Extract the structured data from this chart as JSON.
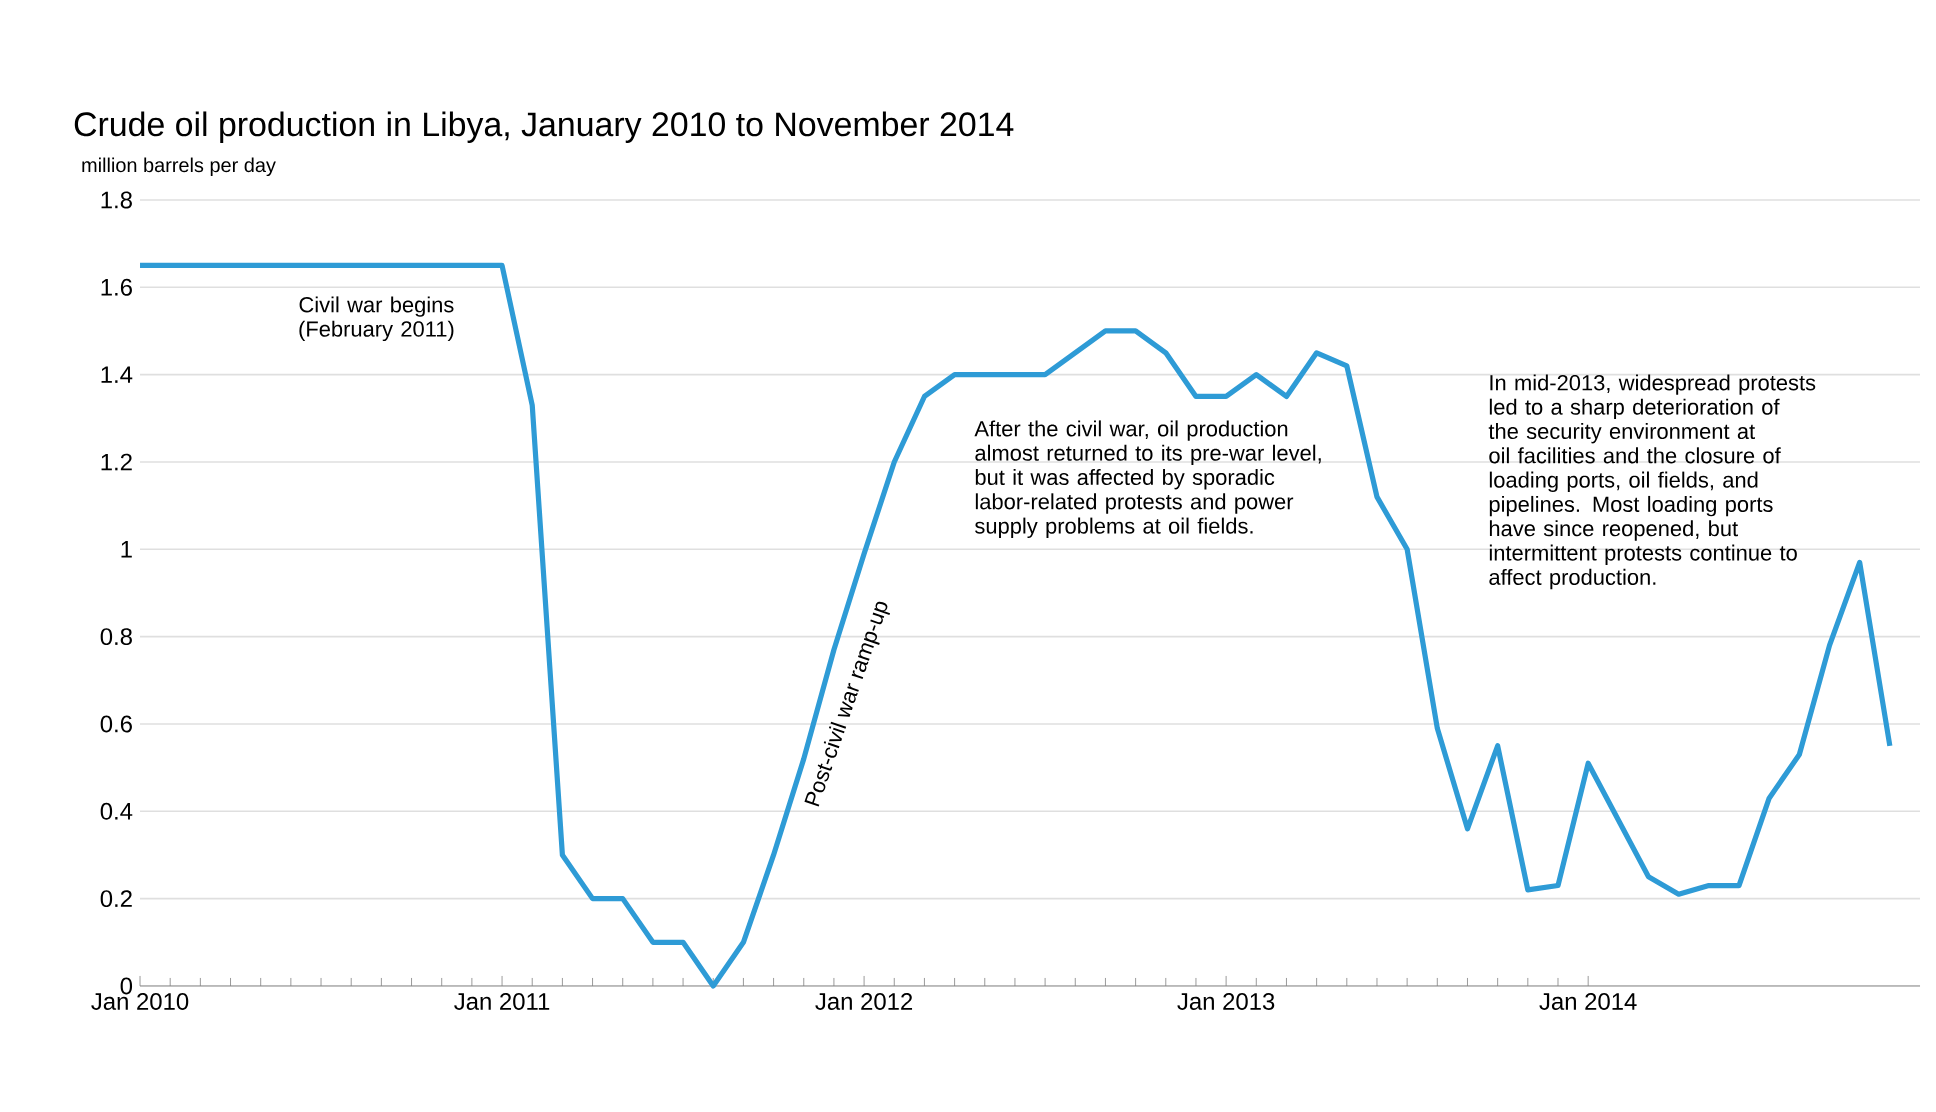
{
  "chart_data": {
    "type": "line",
    "title": "Crude oil production in Libya, January 2010 to November 2014",
    "ylabel": "million barrels  per day",
    "x": [
      "2010-01",
      "2010-02",
      "2010-03",
      "2010-04",
      "2010-05",
      "2010-06",
      "2010-07",
      "2010-08",
      "2010-09",
      "2010-10",
      "2010-11",
      "2010-12",
      "2011-01",
      "2011-02",
      "2011-03",
      "2011-04",
      "2011-05",
      "2011-06",
      "2011-07",
      "2011-08",
      "2011-09",
      "2011-10",
      "2011-11",
      "2011-12",
      "2012-01",
      "2012-02",
      "2012-03",
      "2012-04",
      "2012-05",
      "2012-06",
      "2012-07",
      "2012-08",
      "2012-09",
      "2012-10",
      "2012-11",
      "2012-12",
      "2013-01",
      "2013-02",
      "2013-03",
      "2013-04",
      "2013-05",
      "2013-06",
      "2013-07",
      "2013-08",
      "2013-09",
      "2013-10",
      "2013-11",
      "2013-12",
      "2014-01",
      "2014-02",
      "2014-03",
      "2014-04",
      "2014-05",
      "2014-06",
      "2014-07",
      "2014-08",
      "2014-09",
      "2014-10",
      "2014-11"
    ],
    "series": [
      {
        "color": "#2e9bd6",
        "values": [
          1.65,
          1.65,
          1.65,
          1.65,
          1.65,
          1.65,
          1.65,
          1.65,
          1.65,
          1.65,
          1.65,
          1.65,
          1.65,
          1.33,
          0.3,
          0.2,
          0.2,
          0.1,
          0.1,
          0.0,
          0.1,
          0.3,
          0.52,
          0.77,
          0.99,
          1.2,
          1.35,
          1.4,
          1.4,
          1.4,
          1.4,
          1.45,
          1.5,
          1.5,
          1.45,
          1.35,
          1.35,
          1.4,
          1.35,
          1.45,
          1.42,
          1.12,
          1.0,
          0.59,
          0.36,
          0.55,
          0.22,
          0.23,
          0.51,
          0.38,
          0.25,
          0.21,
          0.23,
          0.23,
          0.43,
          0.53,
          0.78,
          0.97,
          0.55
        ]
      }
    ],
    "xlim": [
      "2010-01",
      "2014-12"
    ],
    "xticks": [
      {
        "value": "2010-01",
        "label": "Jan 2010"
      },
      {
        "value": "2011-01",
        "label": "Jan 2011"
      },
      {
        "value": "2012-01",
        "label": "Jan 2012"
      },
      {
        "value": "2013-01",
        "label": "Jan 2013"
      },
      {
        "value": "2014-01",
        "label": "Jan 2014"
      }
    ],
    "ylim": [
      0,
      1.8
    ],
    "yticks": [
      0,
      0.2,
      0.4,
      0.6,
      0.8,
      1,
      1.2,
      1.4,
      1.6,
      1.8
    ],
    "grid": "y",
    "line_style": "solid",
    "annotations": [
      "Civil war begins (February 2011)",
      "Post-civil war ramp-up",
      "After the civil war, oil production almost returned to its pre-war level, but it was affected by sporadic labor-related protests and power supply problems at oil fields.",
      "In mid-2013, widespread protests led to a sharp deterioration of the security environment at oil facilities and the closure of loading ports, oil fields, and pipelines. Most loading ports have since reopened, but intermittent protests continue to affect production."
    ]
  }
}
